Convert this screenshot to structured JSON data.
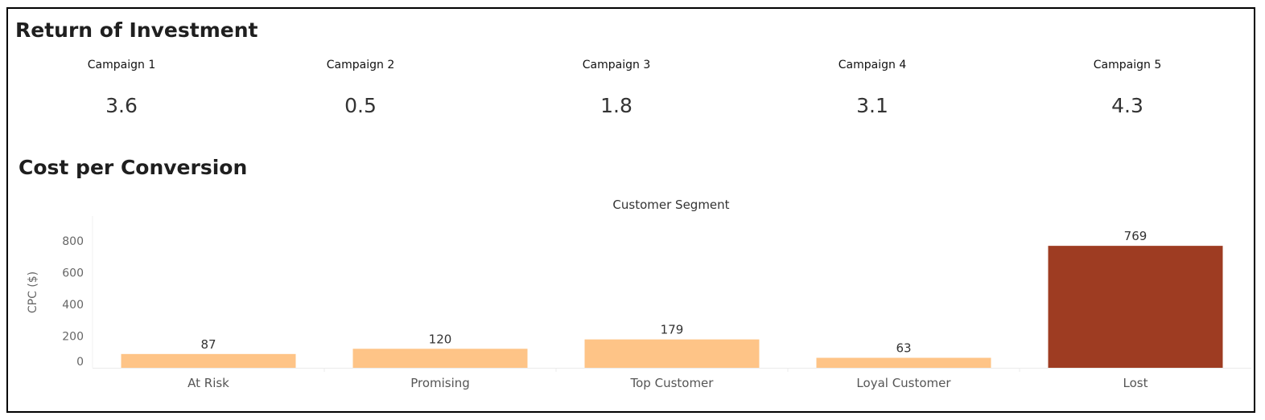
{
  "roi": {
    "title": "Return of Investment",
    "campaigns": [
      {
        "label": "Campaign 1",
        "value": "3.6"
      },
      {
        "label": "Campaign 2",
        "value": "0.5"
      },
      {
        "label": "Campaign 3",
        "value": "1.8"
      },
      {
        "label": "Campaign 4",
        "value": "3.1"
      },
      {
        "label": "Campaign 5",
        "value": "4.3"
      }
    ]
  },
  "cpc": {
    "title": "Cost per Conversion"
  },
  "chart_data": {
    "type": "bar",
    "column_header": "Customer Segment",
    "ylabel": "CPC ($)",
    "ylim": [
      0,
      900
    ],
    "yticks": [
      0,
      200,
      400,
      600,
      800
    ],
    "categories": [
      "At Risk",
      "Promising",
      "Top Customer",
      "Loyal Customer",
      "Lost"
    ],
    "values": [
      87,
      120,
      179,
      63,
      769
    ],
    "colors": [
      "#fec487",
      "#fec487",
      "#fec487",
      "#fec487",
      "#9e3c22"
    ],
    "grid": false,
    "legend": "none"
  }
}
